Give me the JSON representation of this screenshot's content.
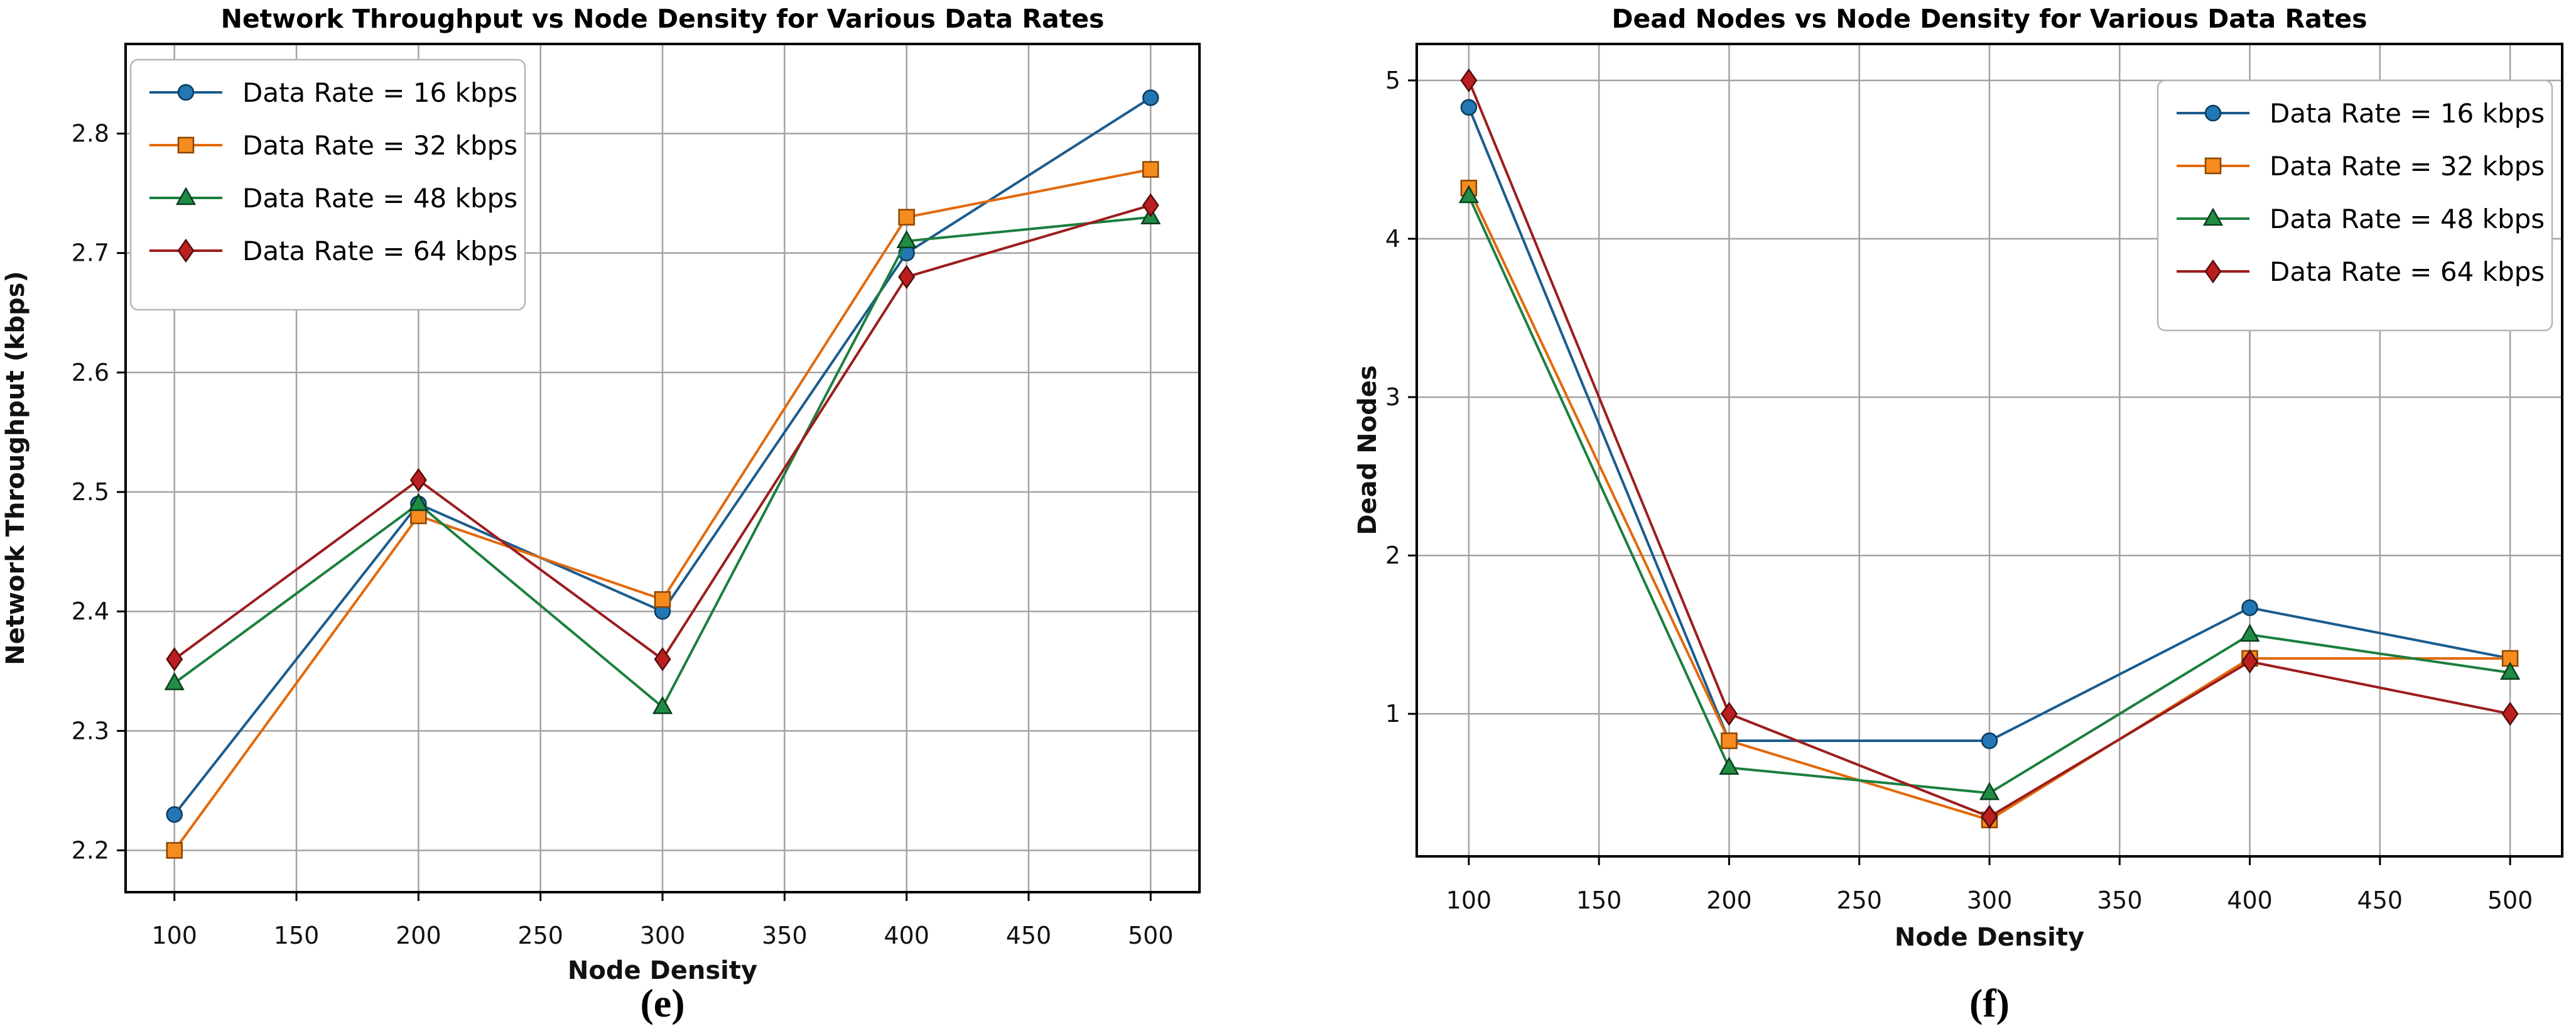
{
  "figure": {
    "background_color": "#ffffff",
    "grid_color": "#a3a3a3",
    "spine_color": "#000000",
    "legend_border_color": "#b5b5b5"
  },
  "chart_data": [
    {
      "type": "line",
      "title": "Network Throughput vs Node Density for Various Data Rates",
      "xlabel": "Node Density",
      "ylabel": "Network Throughput (kbps)",
      "caption": "(e)",
      "x": [
        100,
        200,
        300,
        400,
        500
      ],
      "xticks": [
        100,
        150,
        200,
        250,
        300,
        350,
        400,
        450,
        500
      ],
      "yticks": [
        2.2,
        2.3,
        2.4,
        2.5,
        2.6,
        2.7,
        2.8
      ],
      "ytick_decimals": 1,
      "xlim": [
        80,
        520
      ],
      "ylim": [
        2.165,
        2.875
      ],
      "grid": true,
      "legend_pos": "upper left",
      "series": [
        {
          "name": "Data Rate = 16 kbps",
          "marker": "circle",
          "line_color": "#1b5c8e",
          "fill": "#2277b4",
          "edge": "#0d3a5c",
          "values": [
            2.23,
            2.49,
            2.4,
            2.7,
            2.83
          ]
        },
        {
          "name": "Data Rate = 32 kbps",
          "marker": "square",
          "line_color": "#e2690b",
          "fill": "#f68b1f",
          "edge": "#8a4500",
          "values": [
            2.2,
            2.48,
            2.41,
            2.73,
            2.77
          ]
        },
        {
          "name": "Data Rate = 48 kbps",
          "marker": "triangle",
          "line_color": "#1b7f3e",
          "fill": "#218c44",
          "edge": "#093d1c",
          "values": [
            2.34,
            2.49,
            2.32,
            2.71,
            2.73
          ]
        },
        {
          "name": "Data Rate = 64 kbps",
          "marker": "diamond",
          "line_color": "#9c1d1d",
          "fill": "#bb1f1f",
          "edge": "#560c0c",
          "values": [
            2.36,
            2.51,
            2.36,
            2.68,
            2.74
          ]
        }
      ]
    },
    {
      "type": "line",
      "title": "Dead Nodes vs Node Density for Various Data Rates",
      "xlabel": "Node Density",
      "ylabel": "Dead Nodes",
      "caption": "(f)",
      "x": [
        100,
        200,
        300,
        400,
        500
      ],
      "xticks": [
        100,
        150,
        200,
        250,
        300,
        350,
        400,
        450,
        500
      ],
      "yticks": [
        1,
        2,
        3,
        4,
        5
      ],
      "ytick_decimals": 0,
      "xlim": [
        80,
        520
      ],
      "ylim": [
        0.1,
        5.23
      ],
      "grid": true,
      "legend_pos": "upper right",
      "series": [
        {
          "name": "Data Rate = 16 kbps",
          "marker": "circle",
          "line_color": "#1b5c8e",
          "fill": "#2277b4",
          "edge": "#0d3a5c",
          "values": [
            4.83,
            0.83,
            0.83,
            1.67,
            1.35
          ]
        },
        {
          "name": "Data Rate = 32 kbps",
          "marker": "square",
          "line_color": "#e2690b",
          "fill": "#f68b1f",
          "edge": "#8a4500",
          "values": [
            4.32,
            0.83,
            0.33,
            1.35,
            1.35
          ]
        },
        {
          "name": "Data Rate = 48 kbps",
          "marker": "triangle",
          "line_color": "#1b7f3e",
          "fill": "#218c44",
          "edge": "#093d1c",
          "values": [
            4.27,
            0.66,
            0.5,
            1.5,
            1.26
          ]
        },
        {
          "name": "Data Rate = 64 kbps",
          "marker": "diamond",
          "line_color": "#9c1d1d",
          "fill": "#bb1f1f",
          "edge": "#560c0c",
          "values": [
            5.0,
            1.0,
            0.35,
            1.33,
            1.0
          ]
        }
      ]
    }
  ]
}
